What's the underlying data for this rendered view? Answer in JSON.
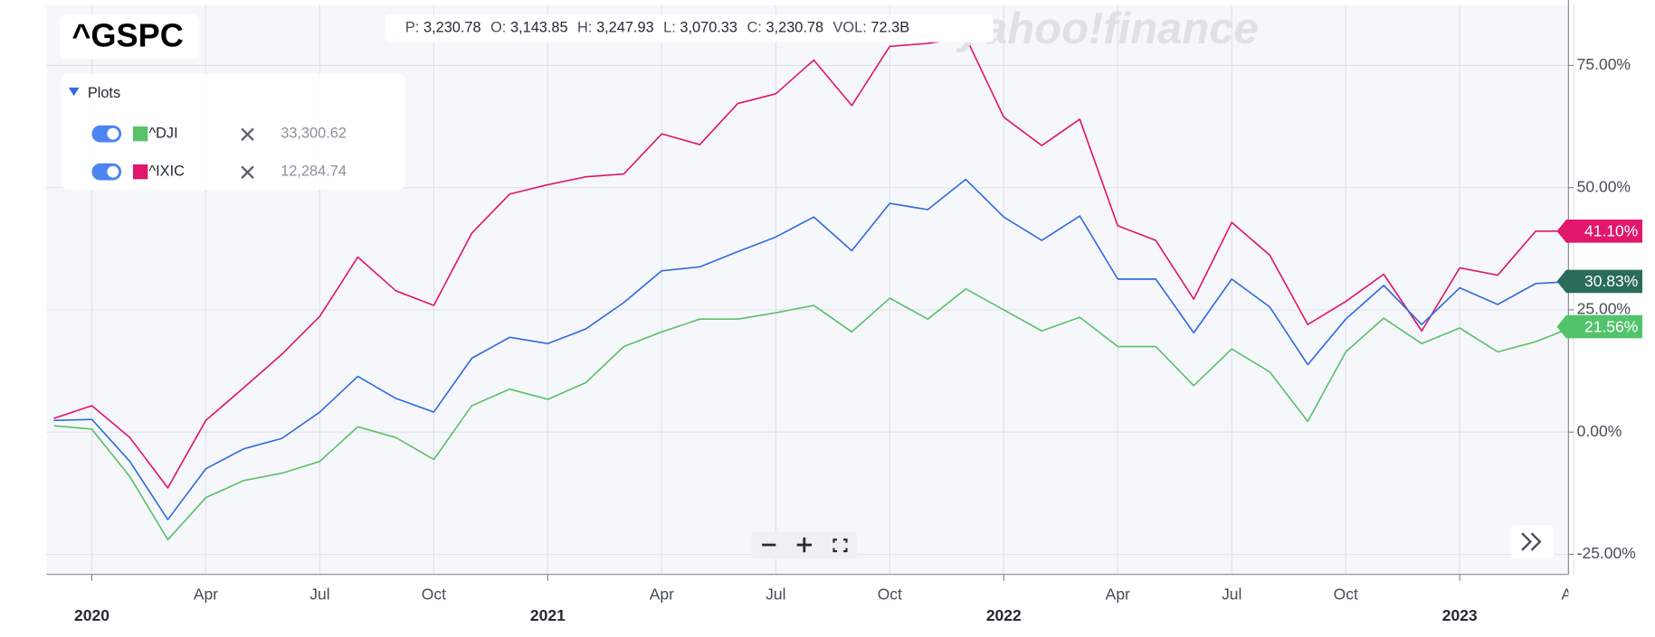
{
  "chart_data": {
    "type": "line",
    "symbol_index": 0,
    "watermark": "yahoo!finance",
    "ohlc": [
      {
        "label": "P:",
        "value": "3,230.78"
      },
      {
        "label": "O:",
        "value": "3,143.85"
      },
      {
        "label": "H:",
        "value": "3,247.93"
      },
      {
        "label": "L:",
        "value": "3,070.33"
      },
      {
        "label": "C:",
        "value": "3,230.78"
      },
      {
        "label": "VOL:",
        "value": "72.3B"
      }
    ],
    "plots_title": "Plots",
    "x": [
      "2019-12",
      "2020-01",
      "2020-02",
      "2020-03",
      "2020-04",
      "2020-05",
      "2020-06",
      "2020-07",
      "2020-08",
      "2020-09",
      "2020-10",
      "2020-11",
      "2020-12",
      "2021-01",
      "2021-02",
      "2021-03",
      "2021-04",
      "2021-05",
      "2021-06",
      "2021-07",
      "2021-08",
      "2021-09",
      "2021-10",
      "2021-11",
      "2021-12",
      "2022-01",
      "2022-02",
      "2022-03",
      "2022-04",
      "2022-05",
      "2022-06",
      "2022-07",
      "2022-08",
      "2022-09",
      "2022-10",
      "2022-11",
      "2022-12",
      "2023-01",
      "2023-02",
      "2023-03",
      "2023-04"
    ],
    "xticks": [
      {
        "value": "2020-01",
        "label": "2020"
      },
      {
        "value": "2020-04",
        "label": "Apr"
      },
      {
        "value": "2020-07",
        "label": "Jul"
      },
      {
        "value": "2020-10",
        "label": "Oct"
      },
      {
        "value": "2021-01",
        "label": "2021"
      },
      {
        "value": "2021-04",
        "label": "Apr"
      },
      {
        "value": "2021-07",
        "label": "Jul"
      },
      {
        "value": "2021-10",
        "label": "Oct"
      },
      {
        "value": "2022-01",
        "label": "2022"
      },
      {
        "value": "2022-04",
        "label": "Apr"
      },
      {
        "value": "2022-07",
        "label": "Jul"
      },
      {
        "value": "2022-10",
        "label": "Oct"
      },
      {
        "value": "2023-01",
        "label": "2023"
      },
      {
        "value": "2023-04",
        "label": "Apr"
      }
    ],
    "ylim": [
      -29.1,
      87.3
    ],
    "yticks": [
      {
        "value": -25,
        "label": "-25.00%"
      },
      {
        "value": 0,
        "label": "0.00%"
      },
      {
        "value": 25,
        "label": "25.00%"
      },
      {
        "value": 50,
        "label": "50.00%"
      },
      {
        "value": 75,
        "label": "75.00%"
      }
    ],
    "grid": true,
    "series": [
      {
        "name": "^GSPC",
        "color": "#2f6ce0",
        "label_color": "#2b6b5c",
        "last_label": "30.83%",
        "values": [
          2.4,
          2.6,
          -6.0,
          -17.9,
          -7.5,
          -3.4,
          -1.3,
          4.1,
          11.4,
          6.9,
          4.1,
          15.1,
          19.4,
          18.1,
          21.1,
          26.5,
          33.0,
          33.8,
          36.9,
          39.9,
          44.0,
          37.1,
          46.8,
          45.5,
          51.7,
          44.0,
          39.2,
          44.2,
          31.3,
          31.3,
          20.3,
          31.3,
          25.6,
          13.8,
          23.1,
          30.0,
          22.0,
          29.5,
          26.1,
          30.4,
          30.83
        ]
      },
      {
        "name": "^DJI",
        "color": "#5ac26a",
        "label_color": "#52c46b",
        "last_label": "21.56%",
        "quote": "33,300.62",
        "values": [
          1.3,
          0.6,
          -9.1,
          -22.0,
          -13.4,
          -9.9,
          -8.4,
          -6.0,
          1.1,
          -1.1,
          -5.6,
          5.4,
          8.8,
          6.7,
          10.1,
          17.5,
          20.5,
          23.1,
          23.1,
          24.4,
          25.9,
          20.5,
          27.4,
          23.1,
          29.3,
          25.0,
          20.7,
          23.5,
          17.5,
          17.5,
          9.5,
          17.0,
          12.3,
          2.2,
          16.4,
          23.3,
          18.1,
          21.3,
          16.4,
          18.5,
          21.56
        ]
      },
      {
        "name": "^IXIC",
        "color": "#e0176b",
        "label_color": "#e0176b",
        "last_label": "41.10%",
        "quote": "12,284.74",
        "values": [
          2.8,
          5.4,
          -1.1,
          -11.4,
          2.4,
          9.1,
          15.9,
          23.7,
          35.8,
          28.9,
          25.9,
          40.7,
          48.7,
          50.6,
          52.2,
          52.8,
          61.0,
          58.8,
          67.2,
          69.2,
          76.1,
          66.8,
          78.9,
          79.5,
          80.8,
          64.4,
          58.6,
          64.0,
          42.2,
          39.2,
          27.2,
          42.9,
          36.2,
          22.0,
          26.7,
          32.3,
          20.7,
          33.6,
          32.1,
          41.1,
          41.1
        ]
      }
    ]
  }
}
